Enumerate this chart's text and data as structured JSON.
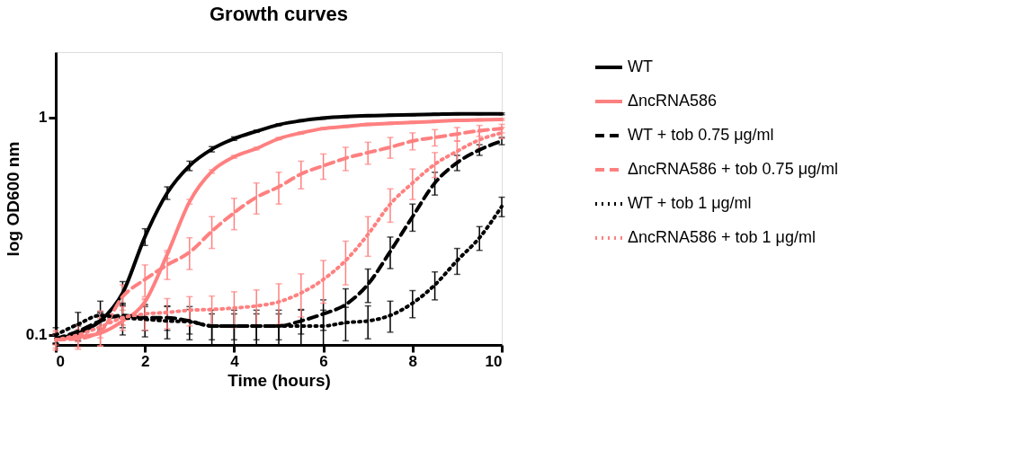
{
  "chart_data": {
    "type": "line",
    "title": "Growth curves",
    "xlabel": "Time (hours)",
    "ylabel": "log OD600 nm",
    "x": [
      0,
      0.5,
      1,
      1.5,
      2,
      2.5,
      3,
      3.5,
      4,
      4.5,
      5,
      5.5,
      6,
      6.5,
      7,
      7.5,
      8,
      8.5,
      9,
      9.5,
      10
    ],
    "xlim": [
      0,
      10
    ],
    "xticks": [
      0,
      2,
      4,
      6,
      8,
      10
    ],
    "ylim": [
      0.09,
      2
    ],
    "yticks": [
      0.1,
      1
    ],
    "log": "y",
    "grid": false,
    "legend": "right",
    "marker": "none",
    "series": [
      {
        "name": "WT",
        "color": "#000000",
        "line_style": "solid",
        "values": [
          0.096,
          0.102,
          0.116,
          0.156,
          0.283,
          0.45,
          0.6,
          0.715,
          0.8,
          0.865,
          0.927,
          0.967,
          0.994,
          1.01,
          1.02,
          1.025,
          1.03,
          1.035,
          1.04,
          1.04,
          1.04
        ],
        "errors": [
          0.005,
          0.008,
          0.01,
          0.02,
          0.025,
          0.03,
          0.03,
          0.02,
          0.015,
          0.01,
          0.01,
          0.01,
          0.01,
          0.01,
          0.01,
          0.01,
          0.01,
          0.01,
          0.01,
          0.01,
          0.01
        ]
      },
      {
        "name": "ΔncRNA586",
        "color": "#ff8080",
        "line_style": "solid",
        "values": [
          0.095,
          0.098,
          0.102,
          0.116,
          0.142,
          0.235,
          0.41,
          0.565,
          0.66,
          0.72,
          0.8,
          0.85,
          0.89,
          0.91,
          0.93,
          0.94,
          0.95,
          0.96,
          0.97,
          0.975,
          0.98
        ],
        "errors": [
          0.005,
          0.005,
          0.005,
          0.005,
          0.005,
          0.01,
          0.01,
          0.01,
          0.01,
          0.01,
          0.01,
          0.01,
          0.01,
          0.01,
          0.01,
          0.01,
          0.01,
          0.01,
          0.01,
          0.01,
          0.01
        ]
      },
      {
        "name": "WT + tob 0.75 μg/ml",
        "color": "#000000",
        "line_style": "dashed",
        "values": [
          0.096,
          0.104,
          0.116,
          0.123,
          0.12,
          0.12,
          0.116,
          0.11,
          0.11,
          0.11,
          0.11,
          0.116,
          0.125,
          0.138,
          0.171,
          0.242,
          0.35,
          0.5,
          0.62,
          0.71,
          0.78
        ],
        "errors": [
          0.005,
          0.008,
          0.012,
          0.015,
          0.015,
          0.015,
          0.015,
          0.015,
          0.015,
          0.015,
          0.015,
          0.015,
          0.02,
          0.025,
          0.03,
          0.04,
          0.05,
          0.06,
          0.05,
          0.04,
          0.03
        ]
      },
      {
        "name": "ΔncRNA586 + tob 0.75 μg/ml",
        "color": "#ff8080",
        "line_style": "dashed",
        "values": [
          0.095,
          0.096,
          0.104,
          0.15,
          0.18,
          0.21,
          0.24,
          0.3,
          0.365,
          0.43,
          0.48,
          0.55,
          0.6,
          0.65,
          0.69,
          0.73,
          0.78,
          0.81,
          0.84,
          0.87,
          0.89
        ],
        "errors": [
          0.008,
          0.01,
          0.015,
          0.02,
          0.03,
          0.03,
          0.04,
          0.05,
          0.06,
          0.07,
          0.08,
          0.08,
          0.08,
          0.08,
          0.08,
          0.08,
          0.07,
          0.07,
          0.06,
          0.05,
          0.04
        ]
      },
      {
        "name": "WT + tob 1 μg/ml",
        "color": "#000000",
        "line_style": "dotted",
        "values": [
          0.1,
          0.112,
          0.123,
          0.12,
          0.118,
          0.116,
          0.115,
          0.11,
          0.11,
          0.11,
          0.11,
          0.11,
          0.11,
          0.114,
          0.116,
          0.123,
          0.14,
          0.17,
          0.22,
          0.28,
          0.39
        ],
        "errors": [
          0.008,
          0.015,
          0.02,
          0.02,
          0.02,
          0.02,
          0.02,
          0.02,
          0.02,
          0.02,
          0.02,
          0.02,
          0.02,
          0.02,
          0.02,
          0.02,
          0.02,
          0.025,
          0.03,
          0.035,
          0.04
        ]
      },
      {
        "name": "ΔncRNA586 + tob 1 μg/ml",
        "color": "#ff8080",
        "line_style": "dotted",
        "values": [
          0.095,
          0.1,
          0.109,
          0.12,
          0.125,
          0.127,
          0.13,
          0.131,
          0.133,
          0.136,
          0.142,
          0.156,
          0.18,
          0.22,
          0.29,
          0.4,
          0.5,
          0.61,
          0.7,
          0.79,
          0.85
        ],
        "errors": [
          0.01,
          0.012,
          0.02,
          0.015,
          0.02,
          0.02,
          0.02,
          0.02,
          0.025,
          0.025,
          0.03,
          0.035,
          0.04,
          0.05,
          0.06,
          0.07,
          0.08,
          0.08,
          0.08,
          0.07,
          0.05
        ]
      }
    ]
  }
}
